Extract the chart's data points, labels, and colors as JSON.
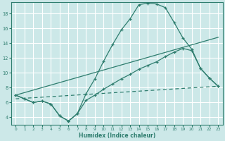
{
  "xlabel": "Humidex (Indice chaleur)",
  "background_color": "#cce8e8",
  "grid_color": "#ffffff",
  "line_color": "#2e7d6e",
  "xlim": [
    -0.5,
    23.5
  ],
  "ylim": [
    3.0,
    19.5
  ],
  "yticks": [
    4,
    6,
    8,
    10,
    12,
    14,
    16,
    18
  ],
  "xticks": [
    0,
    1,
    2,
    3,
    4,
    5,
    6,
    7,
    8,
    9,
    10,
    11,
    12,
    13,
    14,
    15,
    16,
    17,
    18,
    19,
    20,
    21,
    22,
    23
  ],
  "series1_x": [
    0,
    1,
    2,
    3,
    4,
    5,
    6,
    7,
    8,
    9,
    10,
    11,
    12,
    13,
    14,
    15,
    16,
    17,
    18,
    19,
    20,
    21,
    22,
    23
  ],
  "series1_y": [
    7.0,
    6.5,
    6.0,
    6.2,
    5.8,
    4.2,
    3.5,
    4.5,
    7.2,
    9.2,
    11.6,
    13.8,
    15.8,
    17.3,
    19.2,
    19.4,
    19.3,
    18.8,
    16.8,
    14.7,
    13.2,
    10.6,
    9.3,
    8.2
  ],
  "series2_x": [
    0,
    1,
    2,
    3,
    4,
    5,
    6,
    7,
    8,
    9,
    10,
    11,
    12,
    13,
    14,
    15,
    16,
    17,
    18,
    19,
    20,
    21,
    22,
    23
  ],
  "series2_y": [
    7.0,
    6.5,
    6.0,
    6.2,
    5.8,
    4.2,
    3.5,
    4.5,
    6.3,
    7.0,
    7.8,
    8.5,
    9.2,
    9.8,
    10.5,
    11.0,
    11.5,
    12.2,
    12.8,
    13.3,
    13.0,
    10.6,
    9.3,
    8.2
  ],
  "series3_x": [
    0,
    23
  ],
  "series3_y": [
    7.0,
    14.8
  ],
  "series4_x": [
    0,
    23
  ],
  "series4_y": [
    6.5,
    8.2
  ]
}
